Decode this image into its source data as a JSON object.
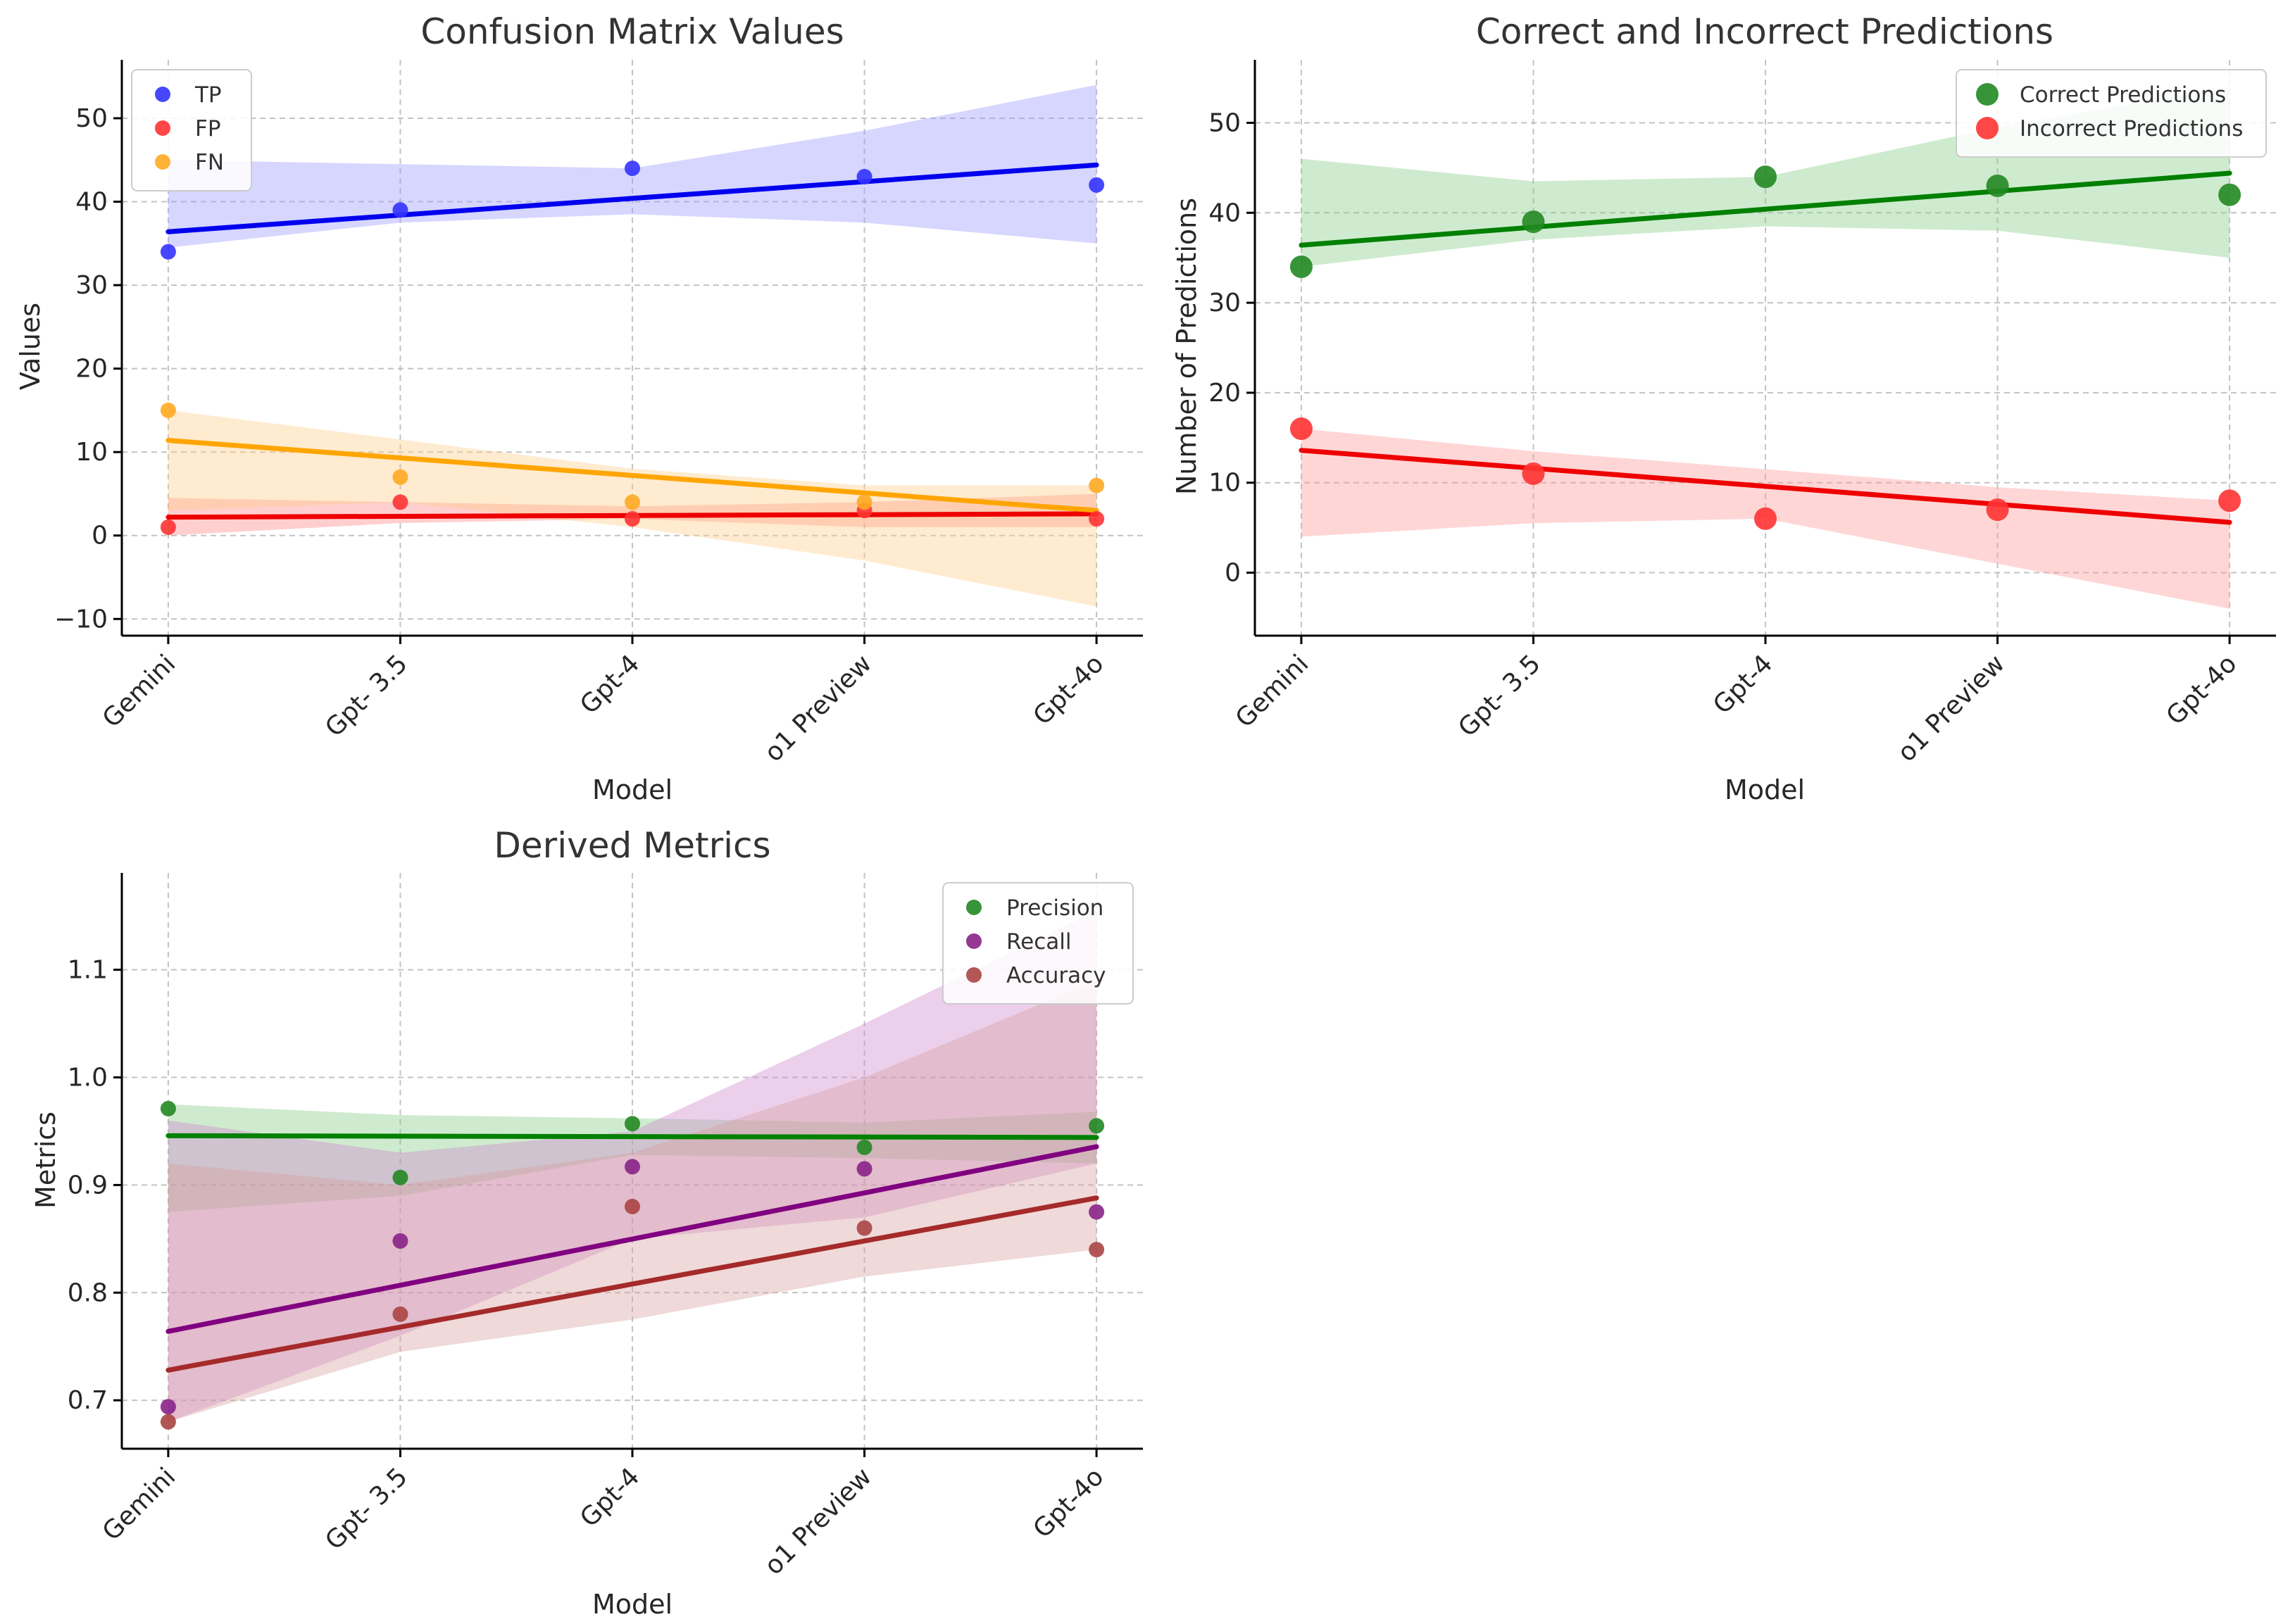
{
  "chart_data": [
    {
      "type": "scatter",
      "title": "Confusion Matrix Values",
      "xlabel": "Model",
      "ylabel": "Values",
      "categories": [
        "Gemini",
        "Gpt- 3.5",
        "Gpt-4",
        "o1 Preview",
        "Gpt-4o"
      ],
      "xlim": [
        -0.2,
        4.2
      ],
      "ylim": [
        -12,
        57
      ],
      "yticks": [
        -10,
        0,
        10,
        20,
        30,
        40,
        50
      ],
      "tick_decimals": 0,
      "grid": true,
      "legend_position": "top-left",
      "series": [
        {
          "name": "TP",
          "values": [
            34,
            39,
            44,
            43,
            42
          ],
          "point_color": "#3333ff",
          "line_color": "#0000ee",
          "band_color": "#9999ff",
          "band_lower": [
            34.5,
            37.5,
            38.5,
            37.5,
            35
          ],
          "band_upper": [
            45,
            44.5,
            44,
            48.5,
            54
          ]
        },
        {
          "name": "FP",
          "values": [
            1,
            4,
            2,
            3,
            2
          ],
          "point_color": "#ff3333",
          "line_color": "#ee0000",
          "band_color": "#ff8888",
          "band_lower": [
            0,
            1.5,
            2,
            1,
            1
          ],
          "band_upper": [
            4.5,
            4,
            3.5,
            4,
            5
          ]
        },
        {
          "name": "FN",
          "values": [
            15,
            7,
            4,
            4,
            6
          ],
          "point_color": "#ffaa22",
          "line_color": "#ffa500",
          "band_color": "#ffcc88",
          "band_lower": [
            3,
            4,
            1,
            -3,
            -8.5
          ],
          "band_upper": [
            15,
            11.5,
            8,
            6,
            6
          ]
        }
      ]
    },
    {
      "type": "scatter",
      "title": "Correct and Incorrect Predictions",
      "xlabel": "Model",
      "ylabel": "Number of Predictions",
      "categories": [
        "Gemini",
        "Gpt- 3.5",
        "Gpt-4",
        "o1 Preview",
        "Gpt-4o"
      ],
      "xlim": [
        -0.2,
        4.2
      ],
      "ylim": [
        -7,
        57
      ],
      "yticks": [
        0,
        10,
        20,
        30,
        40,
        50
      ],
      "tick_decimals": 0,
      "grid": true,
      "legend_position": "top-right",
      "series": [
        {
          "name": "Correct Predictions",
          "values": [
            34,
            39,
            44,
            43,
            42
          ],
          "point_color": "#228822",
          "line_color": "#008000",
          "band_color": "#88cc88",
          "band_lower": [
            34,
            37,
            38.5,
            38,
            35
          ],
          "band_upper": [
            46,
            43.5,
            44,
            49.5,
            54
          ]
        },
        {
          "name": "Incorrect Predictions",
          "values": [
            16,
            11,
            6,
            7,
            8
          ],
          "point_color": "#ff3333",
          "line_color": "#ee0000",
          "band_color": "#ff9999",
          "band_lower": [
            4,
            5.5,
            6,
            1,
            -4
          ],
          "band_upper": [
            16,
            13.5,
            11.5,
            9.5,
            8
          ]
        }
      ]
    },
    {
      "type": "scatter",
      "title": "Derived Metrics",
      "xlabel": "Model",
      "ylabel": "Metrics",
      "categories": [
        "Gemini",
        "Gpt- 3.5",
        "Gpt-4",
        "o1 Preview",
        "Gpt-4o"
      ],
      "xlim": [
        -0.2,
        4.2
      ],
      "ylim": [
        0.655,
        1.19
      ],
      "yticks": [
        0.7,
        0.8,
        0.9,
        1.0,
        1.1
      ],
      "tick_decimals": 1,
      "grid": true,
      "legend_position": "top-right",
      "series": [
        {
          "name": "Precision",
          "values": [
            0.971,
            0.907,
            0.957,
            0.935,
            0.955
          ],
          "point_color": "#228822",
          "line_color": "#008000",
          "band_color": "#88cc88",
          "band_lower": [
            0.875,
            0.89,
            0.928,
            0.925,
            0.92
          ],
          "band_upper": [
            0.975,
            0.965,
            0.962,
            0.958,
            0.968
          ]
        },
        {
          "name": "Recall",
          "values": [
            0.694,
            0.848,
            0.917,
            0.915,
            0.875
          ],
          "point_color": "#882288",
          "line_color": "#800080",
          "band_color": "#cc88cc",
          "band_lower": [
            0.68,
            0.76,
            0.85,
            0.87,
            0.92
          ],
          "band_upper": [
            0.96,
            0.93,
            0.95,
            1.05,
            1.155
          ]
        },
        {
          "name": "Accuracy",
          "values": [
            0.68,
            0.78,
            0.88,
            0.86,
            0.84
          ],
          "point_color": "#aa4444",
          "line_color": "#a52a2a",
          "band_color": "#d8a0a0",
          "band_lower": [
            0.68,
            0.745,
            0.775,
            0.815,
            0.84
          ],
          "band_upper": [
            0.92,
            0.9,
            0.93,
            1.0,
            1.09
          ]
        }
      ]
    }
  ]
}
